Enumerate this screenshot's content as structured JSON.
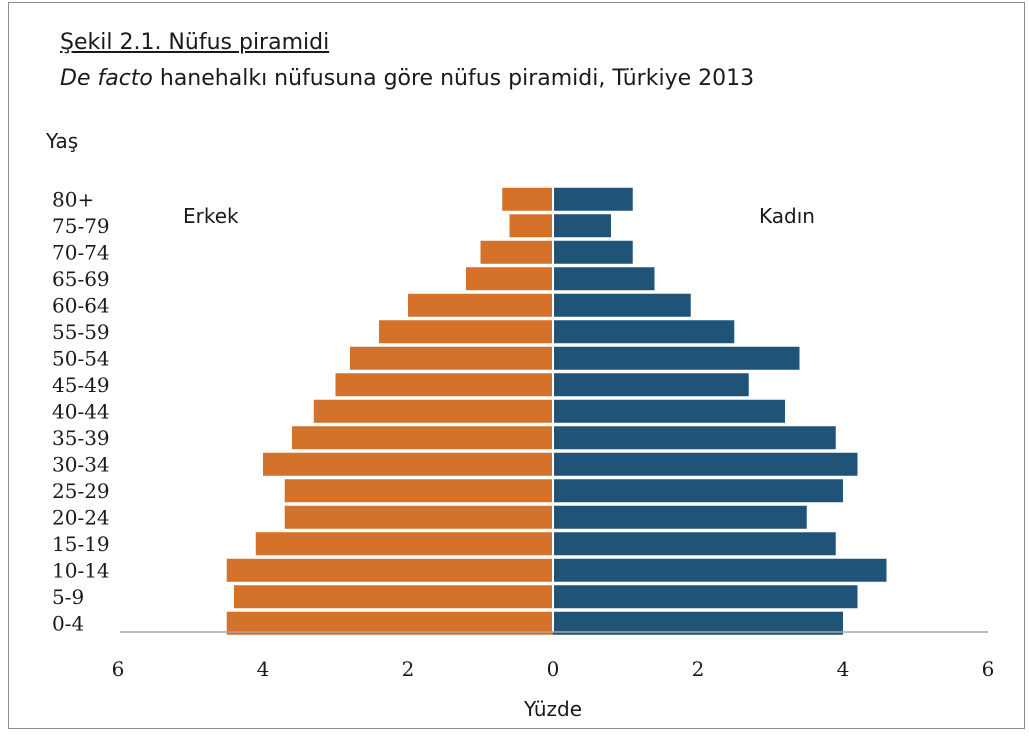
{
  "title": "Şekil 2.1. Nüfus piramidi",
  "subtitle_italic": "De facto",
  "subtitle_rest": " hanehalkı nüfusuna göre nüfus piramidi, Türkiye 2013",
  "chart_data": {
    "type": "bar",
    "orientation": "horizontal-pyramid",
    "ylabel": "Yaş",
    "xlabel": "Yüzde",
    "categories": [
      "0-4",
      "5-9",
      "10-14",
      "15-19",
      "20-24",
      "25-29",
      "30-34",
      "35-39",
      "40-44",
      "45-49",
      "50-54",
      "55-59",
      "60-64",
      "65-69",
      "70-74",
      "75-79",
      "80+"
    ],
    "series": [
      {
        "name": "Erkek",
        "color": "#d4712a",
        "values": [
          4.5,
          4.4,
          4.5,
          4.1,
          3.7,
          3.7,
          4.0,
          3.6,
          3.3,
          3.0,
          2.8,
          2.4,
          2.0,
          1.2,
          1.0,
          0.6,
          0.7
        ]
      },
      {
        "name": "Kadın",
        "color": "#1f5478",
        "values": [
          4.0,
          4.2,
          4.6,
          3.9,
          3.5,
          4.0,
          4.2,
          3.9,
          3.2,
          2.7,
          3.4,
          2.5,
          1.9,
          1.4,
          1.1,
          0.8,
          1.1
        ]
      }
    ],
    "xlim": [
      -6,
      6
    ],
    "xticks": [
      -6,
      -4,
      -2,
      0,
      2,
      4,
      6
    ],
    "xtick_labels": [
      "6",
      "4",
      "2",
      "0",
      "2",
      "4",
      "6"
    ],
    "grid": false,
    "legend": "labels inside plot (top-left Erkek, top-right Kadın)"
  }
}
